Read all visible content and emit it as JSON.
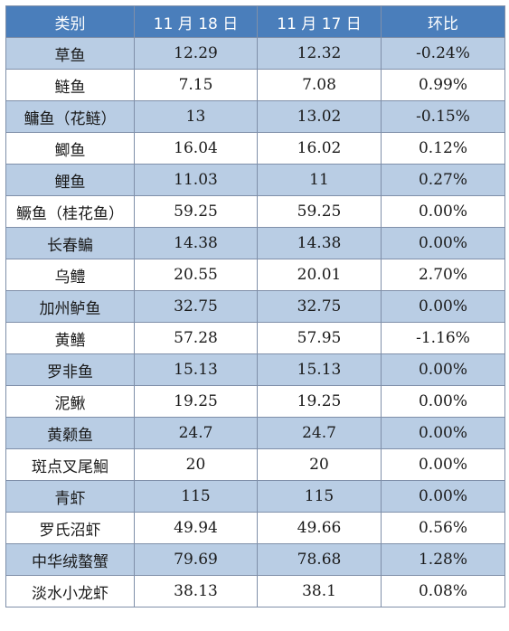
{
  "table": {
    "headers": [
      "类别",
      "11 月 18 日",
      "11 月 17 日",
      "环比"
    ],
    "rows": [
      {
        "category": "草鱼",
        "nov18": "12.29",
        "nov17": "12.32",
        "change": "-0.24%"
      },
      {
        "category": "鲢鱼",
        "nov18": "7.15",
        "nov17": "7.08",
        "change": "0.99%"
      },
      {
        "category": "鳙鱼（花鲢）",
        "nov18": "13",
        "nov17": "13.02",
        "change": "-0.15%"
      },
      {
        "category": "鲫鱼",
        "nov18": "16.04",
        "nov17": "16.02",
        "change": "0.12%"
      },
      {
        "category": "鲤鱼",
        "nov18": "11.03",
        "nov17": "11",
        "change": "0.27%"
      },
      {
        "category": "鳜鱼（桂花鱼）",
        "nov18": "59.25",
        "nov17": "59.25",
        "change": "0.00%"
      },
      {
        "category": "长春鳊",
        "nov18": "14.38",
        "nov17": "14.38",
        "change": "0.00%"
      },
      {
        "category": "乌鳢",
        "nov18": "20.55",
        "nov17": "20.01",
        "change": "2.70%"
      },
      {
        "category": "加州鲈鱼",
        "nov18": "32.75",
        "nov17": "32.75",
        "change": "0.00%"
      },
      {
        "category": "黄鳝",
        "nov18": "57.28",
        "nov17": "57.95",
        "change": "-1.16%"
      },
      {
        "category": "罗非鱼",
        "nov18": "15.13",
        "nov17": "15.13",
        "change": "0.00%"
      },
      {
        "category": "泥鳅",
        "nov18": "19.25",
        "nov17": "19.25",
        "change": "0.00%"
      },
      {
        "category": "黄颡鱼",
        "nov18": "24.7",
        "nov17": "24.7",
        "change": "0.00%"
      },
      {
        "category": "斑点叉尾鮰",
        "nov18": "20",
        "nov17": "20",
        "change": "0.00%"
      },
      {
        "category": "青虾",
        "nov18": "115",
        "nov17": "115",
        "change": "0.00%"
      },
      {
        "category": "罗氏沼虾",
        "nov18": "49.94",
        "nov17": "49.66",
        "change": "0.56%"
      },
      {
        "category": "中华绒螯蟹",
        "nov18": "79.69",
        "nov17": "78.68",
        "change": "1.28%"
      },
      {
        "category": "淡水小龙虾",
        "nov18": "38.13",
        "nov17": "38.1",
        "change": "0.08%"
      }
    ]
  },
  "colors": {
    "header_bg": "#4a7ebb",
    "shaded_row_bg": "#b9cde4",
    "plain_row_bg": "#ffffff",
    "border": "#7f8fa9"
  }
}
